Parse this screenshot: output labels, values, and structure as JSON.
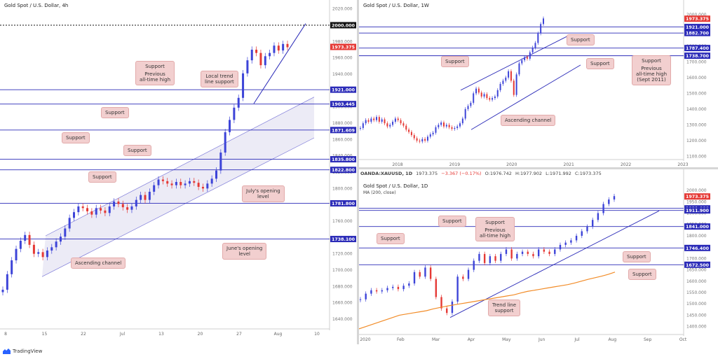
{
  "chart_data": [
    {
      "type": "line",
      "panel": "left",
      "title": "Gold Spot / U.S. Dollar, 4h",
      "x_ticks": [
        "8",
        "15",
        "22",
        "Jul",
        "13",
        "20",
        "27",
        "Aug",
        "10"
      ],
      "y_ticks": [
        "2020.000",
        "2000.000",
        "1980.000",
        "1960.000",
        "1940.000",
        "1920.000",
        "1900.000",
        "1880.000",
        "1860.000",
        "1840.000",
        "1820.000",
        "1800.000",
        "1780.000",
        "1760.000",
        "1740.000",
        "1720.000",
        "1700.000",
        "1680.000",
        "1660.000",
        "1640.000"
      ],
      "ylim": [
        1628,
        2024
      ],
      "price_tags": [
        {
          "label": "2000.000",
          "value": 2000,
          "color": "#111111"
        },
        {
          "label": "1973.375",
          "value": 1973.4,
          "color": "#e53935"
        },
        {
          "label": "1921.000",
          "value": 1921,
          "color": "#2b2bb8"
        },
        {
          "label": "1903.445",
          "value": 1903.4,
          "color": "#2b2bb8"
        },
        {
          "label": "1871.609",
          "value": 1871.6,
          "color": "#2b2bb8"
        },
        {
          "label": "1835.800",
          "value": 1835.8,
          "color": "#2b2bb8"
        },
        {
          "label": "1822.800",
          "value": 1822.8,
          "color": "#2b2bb8"
        },
        {
          "label": "1781.800",
          "value": 1781.8,
          "color": "#2b2bb8"
        },
        {
          "label": "1738.100",
          "value": 1738.1,
          "color": "#2b2bb8"
        }
      ],
      "series": [
        {
          "values": [
            1676,
            1695,
            1712,
            1726,
            1736,
            1743,
            1731,
            1720,
            1722,
            1716,
            1724,
            1728,
            1735,
            1741,
            1751,
            1764,
            1771,
            1778,
            1776,
            1772,
            1768,
            1776,
            1773,
            1770,
            1778,
            1784,
            1781,
            1777,
            1774,
            1778,
            1786,
            1792,
            1786,
            1796,
            1804,
            1811,
            1809,
            1806,
            1804,
            1808,
            1804,
            1806,
            1809,
            1807,
            1802,
            1800,
            1806,
            1812,
            1822,
            1844,
            1869,
            1884,
            1899,
            1911,
            1941,
            1957,
            1970,
            1966,
            1951,
            1962,
            1966,
            1975,
            1969,
            1977,
            1973
          ]
        }
      ],
      "annotations": [
        "Support",
        "Previous all-time high",
        "Local trend line support",
        "Support",
        "Support",
        "Support",
        "Support",
        "July's opening level",
        "June's opening level",
        "Ascending channel"
      ]
    },
    {
      "type": "line",
      "panel": "top-right",
      "title": "Gold Spot / U.S. Dollar, 1W",
      "x_ticks": [
        "2018",
        "2019",
        "2020",
        "2021",
        "2022",
        "2023"
      ],
      "y_ticks": [
        "2000.000",
        "1900.000",
        "1800.000",
        "1700.000",
        "1600.000",
        "1500.000",
        "1400.000",
        "1300.000",
        "1200.000",
        "1100.000"
      ],
      "ylim": [
        1080,
        2030
      ],
      "price_tags": [
        {
          "label": "1973.375",
          "value": 1973.4,
          "color": "#e53935"
        },
        {
          "label": "1921.000",
          "value": 1921,
          "color": "#2b2bb8"
        },
        {
          "label": "1882.700",
          "value": 1882.7,
          "color": "#2b2bb8"
        },
        {
          "label": "1787.400",
          "value": 1787.4,
          "color": "#2b2bb8"
        },
        {
          "label": "1738.700",
          "value": 1738.7,
          "color": "#2b2bb8"
        }
      ],
      "series": [
        {
          "values": [
            1280,
            1310,
            1330,
            1320,
            1340,
            1330,
            1350,
            1320,
            1335,
            1310,
            1290,
            1300,
            1320,
            1340,
            1330,
            1310,
            1295,
            1270,
            1255,
            1235,
            1215,
            1200,
            1195,
            1210,
            1200,
            1225,
            1240,
            1250,
            1285,
            1300,
            1315,
            1290,
            1300,
            1285,
            1275,
            1280,
            1290,
            1310,
            1340,
            1400,
            1420,
            1440,
            1500,
            1530,
            1505,
            1480,
            1495,
            1470,
            1460,
            1470,
            1480,
            1520,
            1560,
            1580,
            1600,
            1640,
            1580,
            1490,
            1620,
            1690,
            1710,
            1730,
            1720,
            1760,
            1790,
            1820,
            1880,
            1940,
            1975
          ]
        }
      ],
      "annotations": [
        "Support",
        "Support",
        "Support",
        "Support",
        "Previous all-time high (Sept 2011)",
        "Ascending channel"
      ]
    },
    {
      "type": "line",
      "panel": "bottom-right",
      "header": "OANDA:XAUUSD, 1D  1973.375  −3.367 (−0.17%)  O:1976.742  H:1977.902  L:1971.992  C:1973.375",
      "title": "Gold Spot / U.S. Dollar, 1D",
      "subtitle": "MA (200, close)",
      "x_ticks": [
        "2020",
        "Feb",
        "Mar",
        "Apr",
        "May",
        "Jun",
        "Jul",
        "Aug",
        "Sep",
        "Oct"
      ],
      "y_ticks": [
        "2000.000",
        "1950.000",
        "1900.000",
        "1850.000",
        "1800.000",
        "1750.000",
        "1700.000",
        "1650.000",
        "1600.000",
        "1550.000",
        "1500.000",
        "1450.000",
        "1400.000"
      ],
      "ylim": [
        1365,
        2025
      ],
      "price_tags": [
        {
          "label": "1973.375",
          "value": 1973.4,
          "color": "#e53935"
        },
        {
          "label": "1921.000",
          "value": 1921,
          "color": "#2b2bb8"
        },
        {
          "label": "1911.900",
          "value": 1911.9,
          "color": "#2b2bb8"
        },
        {
          "label": "1841.000",
          "value": 1841,
          "color": "#2b2bb8"
        },
        {
          "label": "1746.400",
          "value": 1746.4,
          "color": "#2b2bb8"
        },
        {
          "label": "1672.500",
          "value": 1672.5,
          "color": "#2b2bb8"
        }
      ],
      "series": [
        {
          "name": "XAUUSD",
          "values": [
            1520,
            1545,
            1560,
            1555,
            1560,
            1570,
            1575,
            1565,
            1580,
            1590,
            1640,
            1620,
            1660,
            1610,
            1530,
            1480,
            1460,
            1510,
            1620,
            1610,
            1650,
            1690,
            1720,
            1680,
            1710,
            1690,
            1720,
            1740,
            1700,
            1720,
            1730,
            1720,
            1710,
            1740,
            1730,
            1720,
            1740,
            1760,
            1770,
            1780,
            1800,
            1820,
            1840,
            1870,
            1900,
            1940,
            1960,
            1975
          ]
        },
        {
          "name": "MA (200, close)",
          "values": [
            1390,
            1400,
            1410,
            1420,
            1430,
            1440,
            1450,
            1455,
            1460,
            1465,
            1470,
            1478,
            1484,
            1490,
            1495,
            1500,
            1505,
            1510,
            1515,
            1520,
            1525,
            1530,
            1535,
            1540,
            1548,
            1555,
            1560,
            1565,
            1570,
            1575,
            1580,
            1585,
            1592,
            1600,
            1608,
            1615,
            1622,
            1630,
            1640
          ]
        }
      ],
      "annotations": [
        "Support",
        "Support",
        "Previous all-time high",
        "Support",
        "Support",
        "Support",
        "Trend line support"
      ]
    }
  ],
  "panels": {
    "left": {
      "title": "Gold Spot / U.S. Dollar, 4h",
      "callouts": {
        "support_ath": "Support",
        "support_ath_2": "Previous",
        "support_ath_3": "all-time high",
        "trend1": "Local trend",
        "trend2": "line support",
        "support_1903": "Support",
        "support_1871": "Support",
        "support_1835": "Support",
        "support_1822": "Support",
        "july1": "July's opening",
        "july2": "level",
        "june1": "June's opening",
        "june2": "level",
        "channel": "Ascending channel"
      }
    },
    "top_right": {
      "title": "Gold Spot / U.S. Dollar, 1W",
      "callouts": {
        "s1": "Support",
        "s2": "Support",
        "s3": "Support",
        "ath1": "Support",
        "ath2": "Previous",
        "ath3": "all-time high",
        "ath4": "(Sept 2011)",
        "channel": "Ascending channel"
      }
    },
    "bottom_right": {
      "header": {
        "symbol": "OANDA:XAUUSD, 1D",
        "last": "1973.375",
        "change": "−3.367 (−0.17%)",
        "o": "O:1976.742",
        "h": "H:1977.902",
        "l": "L:1971.992",
        "c": "C:1973.375"
      },
      "title": "Gold Spot / U.S. Dollar, 1D",
      "ma_label": "MA (200, close)",
      "callouts": {
        "s1": "Support",
        "s2": "Support",
        "ath1": "Support",
        "ath2": "Previous",
        "ath3": "all-time high",
        "s3": "Support",
        "s4": "Support",
        "tl1": "Trend line",
        "tl2": "support"
      }
    }
  },
  "footer": {
    "brand": "TradingView"
  },
  "colors": {
    "level": "#2b2bb8",
    "last_price": "#e53935",
    "up": "#3d44d8",
    "down": "#e53935",
    "ma": "#f28c28",
    "channel_fill": "#ecebf6",
    "callout": "#f2cfcf"
  }
}
